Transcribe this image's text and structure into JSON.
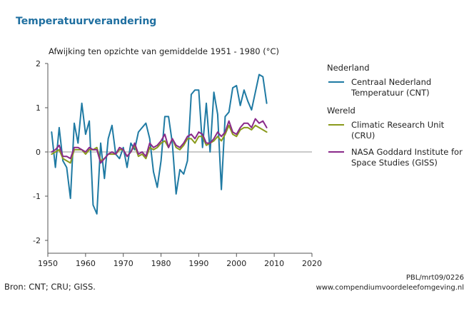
{
  "title": "Temperatuurverandering",
  "source": "Bron: CNT; CRU; GISS.",
  "footer": {
    "code": "PBL/mrt09/0226",
    "url": "www.compendiumvoordeleefomgeving.nl"
  },
  "legend": {
    "groups": [
      {
        "heading": "Nederland",
        "items": [
          {
            "label": "Centraal Nederland Temperatuur (CNT)",
            "color": "#1f7aa3"
          }
        ]
      },
      {
        "heading": "Wereld",
        "items": [
          {
            "label": "Climatic Research Unit (CRU)",
            "color": "#8a9a1c"
          },
          {
            "label": "NASA Goddard Institute for Space Studies (GISS)",
            "color": "#8a2a8a"
          }
        ]
      }
    ]
  },
  "chart_data": {
    "type": "line",
    "title": "Afwijking ten opzichte van gemiddelde 1951 - 1980 (°C)",
    "xlabel": "",
    "ylabel": "",
    "xlim": [
      1950,
      2020
    ],
    "ylim": [
      -2,
      2
    ],
    "xticks": [
      1950,
      1960,
      1970,
      1980,
      1990,
      2000,
      2010,
      2020
    ],
    "yticks": [
      -2,
      -1,
      0,
      1,
      2
    ],
    "zero_line": true,
    "legend_position": "right",
    "series": [
      {
        "name": "Centraal Nederland Temperatuur (CNT)",
        "color": "#1f7aa3",
        "x": [
          1951,
          1952,
          1953,
          1954,
          1955,
          1956,
          1957,
          1958,
          1959,
          1960,
          1961,
          1962,
          1963,
          1964,
          1965,
          1966,
          1967,
          1968,
          1969,
          1970,
          1971,
          1972,
          1973,
          1974,
          1975,
          1976,
          1977,
          1978,
          1979,
          1980,
          1981,
          1982,
          1983,
          1984,
          1985,
          1986,
          1987,
          1988,
          1989,
          1990,
          1991,
          1992,
          1993,
          1994,
          1995,
          1996,
          1997,
          1998,
          1999,
          2000,
          2001,
          2002,
          2003,
          2004,
          2005,
          2006,
          2007,
          2008
        ],
        "y": [
          0.45,
          -0.35,
          0.55,
          -0.2,
          -0.35,
          -1.05,
          0.65,
          0.2,
          1.1,
          0.4,
          0.7,
          -1.2,
          -1.4,
          0.2,
          -0.6,
          0.3,
          0.6,
          -0.05,
          -0.15,
          0.1,
          -0.35,
          0.2,
          0.05,
          0.45,
          0.55,
          0.65,
          0.3,
          -0.45,
          -0.8,
          -0.2,
          0.8,
          0.8,
          0.2,
          -0.95,
          -0.4,
          -0.5,
          -0.2,
          1.3,
          1.4,
          1.4,
          0.1,
          1.1,
          0.0,
          1.35,
          0.85,
          -0.85,
          0.8,
          0.9,
          1.45,
          1.5,
          1.05,
          1.4,
          1.15,
          0.95,
          1.35,
          1.75,
          1.7,
          1.1
        ]
      },
      {
        "name": "Climatic Research Unit (CRU)",
        "color": "#8a9a1c",
        "x": [
          1951,
          1952,
          1953,
          1954,
          1955,
          1956,
          1957,
          1958,
          1959,
          1960,
          1961,
          1962,
          1963,
          1964,
          1965,
          1966,
          1967,
          1968,
          1969,
          1970,
          1971,
          1972,
          1973,
          1974,
          1975,
          1976,
          1977,
          1978,
          1979,
          1980,
          1981,
          1982,
          1983,
          1984,
          1985,
          1986,
          1987,
          1988,
          1989,
          1990,
          1991,
          1992,
          1993,
          1994,
          1995,
          1996,
          1997,
          1998,
          1999,
          2000,
          2001,
          2002,
          2003,
          2004,
          2005,
          2006,
          2007,
          2008
        ],
        "y": [
          -0.05,
          0.0,
          0.05,
          -0.15,
          -0.2,
          -0.25,
          0.05,
          0.05,
          0.05,
          -0.05,
          0.05,
          0.05,
          0.1,
          -0.2,
          -0.15,
          -0.05,
          -0.05,
          -0.05,
          0.05,
          0.05,
          -0.1,
          0.0,
          0.15,
          -0.1,
          -0.05,
          -0.15,
          0.1,
          0.05,
          0.1,
          0.2,
          0.25,
          0.1,
          0.3,
          0.1,
          0.05,
          0.15,
          0.3,
          0.3,
          0.2,
          0.35,
          0.35,
          0.15,
          0.2,
          0.25,
          0.35,
          0.25,
          0.4,
          0.6,
          0.4,
          0.35,
          0.5,
          0.55,
          0.55,
          0.5,
          0.6,
          0.55,
          0.5,
          0.45
        ]
      },
      {
        "name": "NASA Goddard Institute for Space Studies (GISS)",
        "color": "#8a2a8a",
        "x": [
          1951,
          1952,
          1953,
          1954,
          1955,
          1956,
          1957,
          1958,
          1959,
          1960,
          1961,
          1962,
          1963,
          1964,
          1965,
          1966,
          1967,
          1968,
          1969,
          1970,
          1971,
          1972,
          1973,
          1974,
          1975,
          1976,
          1977,
          1978,
          1979,
          1980,
          1981,
          1982,
          1983,
          1984,
          1985,
          1986,
          1987,
          1988,
          1989,
          1990,
          1991,
          1992,
          1993,
          1994,
          1995,
          1996,
          1997,
          1998,
          1999,
          2000,
          2001,
          2002,
          2003,
          2004,
          2005,
          2006,
          2007,
          2008
        ],
        "y": [
          0.0,
          0.05,
          0.15,
          -0.1,
          -0.1,
          -0.15,
          0.1,
          0.1,
          0.05,
          0.0,
          0.1,
          0.05,
          0.05,
          -0.25,
          -0.15,
          -0.05,
          0.0,
          -0.05,
          0.1,
          0.05,
          -0.1,
          0.0,
          0.2,
          -0.05,
          0.0,
          -0.1,
          0.2,
          0.1,
          0.15,
          0.25,
          0.4,
          0.1,
          0.3,
          0.15,
          0.1,
          0.2,
          0.35,
          0.4,
          0.3,
          0.45,
          0.4,
          0.2,
          0.2,
          0.3,
          0.45,
          0.35,
          0.45,
          0.7,
          0.45,
          0.4,
          0.55,
          0.65,
          0.65,
          0.55,
          0.75,
          0.65,
          0.7,
          0.55
        ]
      }
    ]
  }
}
